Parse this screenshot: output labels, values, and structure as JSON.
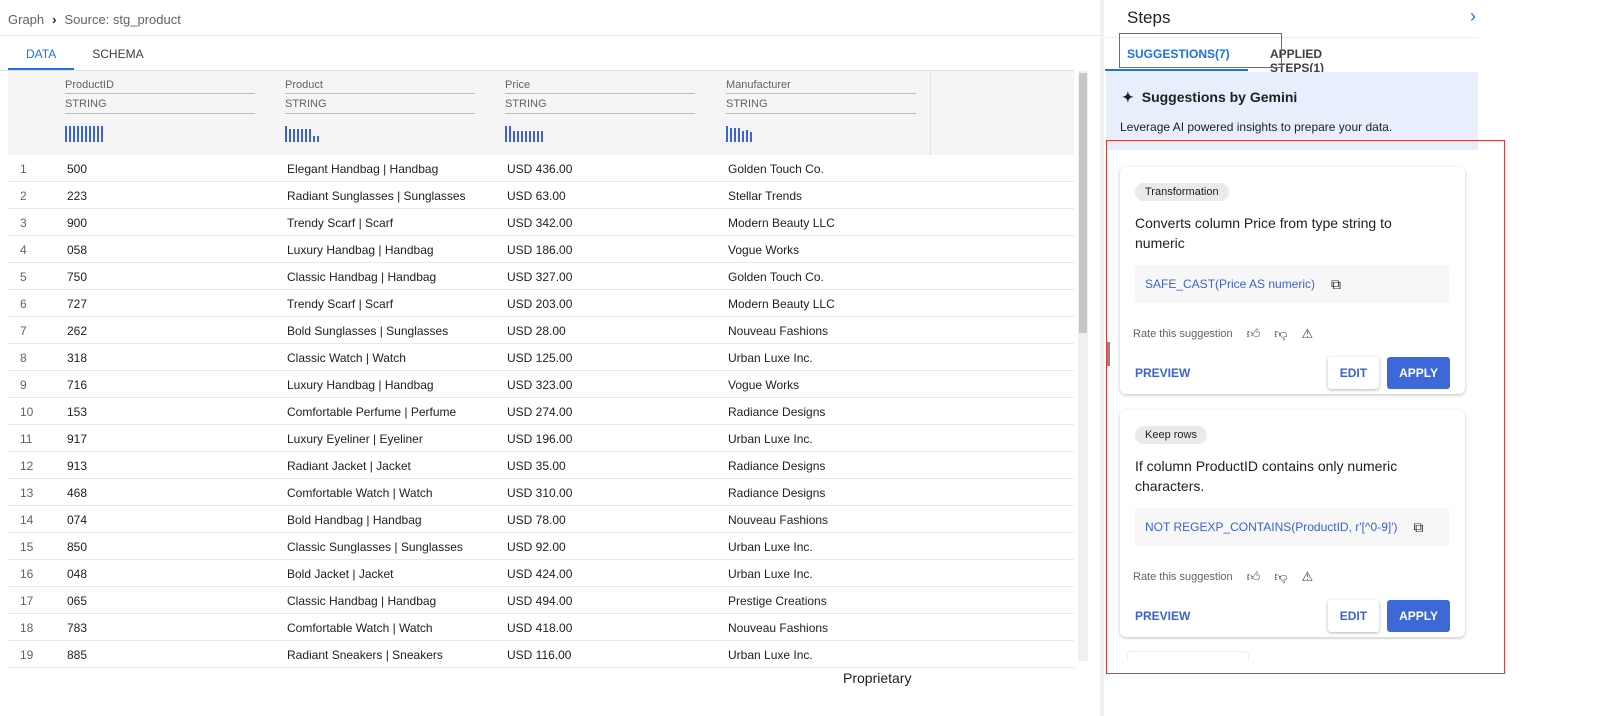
{
  "breadcrumb": {
    "root": "Graph",
    "current": "Source: stg_product"
  },
  "tabs": [
    {
      "label": "DATA",
      "active": true
    },
    {
      "label": "SCHEMA",
      "active": false
    }
  ],
  "columns": [
    {
      "name": "ProductID",
      "type": "STRING",
      "histogram": [
        1,
        1,
        1,
        1,
        1,
        1,
        1,
        1,
        1,
        1
      ]
    },
    {
      "name": "Product",
      "type": "STRING",
      "histogram": [
        1,
        0.8,
        0.8,
        0.8,
        0.8,
        0.8,
        0.8,
        0.4,
        0.4
      ]
    },
    {
      "name": "Price",
      "type": "STRING",
      "histogram": [
        1,
        1,
        0.7,
        0.7,
        0.7,
        0.7,
        0.7,
        0.7,
        0.7,
        0.7
      ]
    },
    {
      "name": "Manufacturer",
      "type": "STRING",
      "histogram": [
        1,
        0.85,
        0.85,
        0.85,
        0.7,
        0.75,
        0.6
      ]
    }
  ],
  "rows": [
    [
      "1",
      "500",
      "Elegant Handbag | Handbag",
      "USD 436.00",
      "Golden Touch Co."
    ],
    [
      "2",
      "223",
      "Radiant Sunglasses | Sunglasses",
      "USD 63.00",
      "Stellar Trends"
    ],
    [
      "3",
      "900",
      "Trendy Scarf | Scarf",
      "USD 342.00",
      "Modern Beauty LLC"
    ],
    [
      "4",
      "058",
      "Luxury Handbag | Handbag",
      "USD 186.00",
      "Vogue Works"
    ],
    [
      "5",
      "750",
      "Classic Handbag | Handbag",
      "USD 327.00",
      "Golden Touch Co."
    ],
    [
      "6",
      "727",
      "Trendy Scarf | Scarf",
      "USD 203.00",
      "Modern Beauty LLC"
    ],
    [
      "7",
      "262",
      "Bold Sunglasses | Sunglasses",
      "USD 28.00",
      "Nouveau Fashions"
    ],
    [
      "8",
      "318",
      "Classic Watch | Watch",
      "USD 125.00",
      "Urban Luxe Inc."
    ],
    [
      "9",
      "716",
      "Luxury Handbag | Handbag",
      "USD 323.00",
      "Vogue Works"
    ],
    [
      "10",
      "153",
      "Comfortable Perfume | Perfume",
      "USD 274.00",
      "Radiance Designs"
    ],
    [
      "11",
      "917",
      "Luxury Eyeliner | Eyeliner",
      "USD 196.00",
      "Urban Luxe Inc."
    ],
    [
      "12",
      "913",
      "Radiant Jacket | Jacket",
      "USD 35.00",
      "Radiance Designs"
    ],
    [
      "13",
      "468",
      "Comfortable Watch | Watch",
      "USD 310.00",
      "Radiance Designs"
    ],
    [
      "14",
      "074",
      "Bold Handbag | Handbag",
      "USD 78.00",
      "Nouveau Fashions"
    ],
    [
      "15",
      "850",
      "Classic Sunglasses | Sunglasses",
      "USD 92.00",
      "Urban Luxe Inc."
    ],
    [
      "16",
      "048",
      "Bold Jacket | Jacket",
      "USD 424.00",
      "Urban Luxe Inc."
    ],
    [
      "17",
      "065",
      "Classic Handbag | Handbag",
      "USD 494.00",
      "Prestige Creations"
    ],
    [
      "18",
      "783",
      "Comfortable Watch | Watch",
      "USD 418.00",
      "Nouveau Fashions"
    ],
    [
      "19",
      "885",
      "Radiant Sneakers | Sneakers",
      "USD 116.00",
      "Urban Luxe Inc."
    ]
  ],
  "panel": {
    "title": "Steps",
    "tabs": [
      {
        "label": "SUGGESTIONS(7)",
        "active": true
      },
      {
        "label": "APPLIED STEPS(1)",
        "active": false
      }
    ],
    "gemini": {
      "title": "Suggestions by Gemini",
      "desc": "Leverage AI powered insights to prepare your data."
    },
    "cards": [
      {
        "chip": "Transformation",
        "desc": "Converts column Price from type string to numeric",
        "code": "SAFE_CAST(Price AS numeric)",
        "rate": "Rate this suggestion",
        "preview": "PREVIEW",
        "edit": "EDIT",
        "apply": "APPLY"
      },
      {
        "chip": "Keep rows",
        "desc": "If column ProductID contains only numeric characters.",
        "code": "NOT REGEXP_CONTAINS(ProductID, r'[^0-9]')",
        "rate": "Rate this suggestion",
        "preview": "PREVIEW",
        "edit": "EDIT",
        "apply": "APPLY"
      }
    ]
  },
  "footer": "Proprietary",
  "colors": {
    "accent": "#1a73e8",
    "apply": "#3d68d8",
    "highlight": "#e53935"
  }
}
